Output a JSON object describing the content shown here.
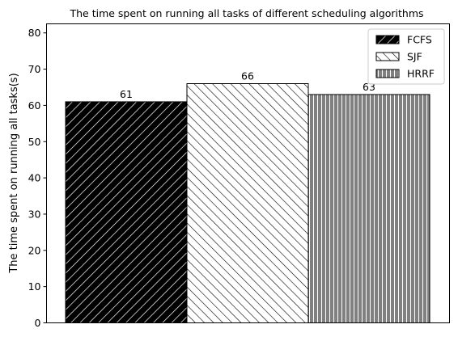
{
  "chart_data": {
    "type": "bar",
    "title": "The time spent on running all tasks of different scheduling algorithms",
    "xlabel": "",
    "ylabel": "The time spent on running all tasks(s)",
    "ylim": [
      0,
      82.5
    ],
    "yticks": [
      0,
      10,
      20,
      30,
      40,
      50,
      60,
      70,
      80
    ],
    "grid": false,
    "legend_position": "top-right",
    "series": [
      {
        "name": "FCFS",
        "value": 61,
        "label": "61",
        "fill": "#000000",
        "hatch_color": "#ffffff",
        "hatch": "forward-diagonal"
      },
      {
        "name": "SJF",
        "value": 66,
        "label": "66",
        "fill": "#ffffff",
        "hatch_color": "#000000",
        "hatch": "back-diagonal"
      },
      {
        "name": "HRRF",
        "value": 63,
        "label": "63",
        "fill": "#808080",
        "hatch_color": "#ffffff",
        "hatch": "vertical"
      }
    ]
  }
}
